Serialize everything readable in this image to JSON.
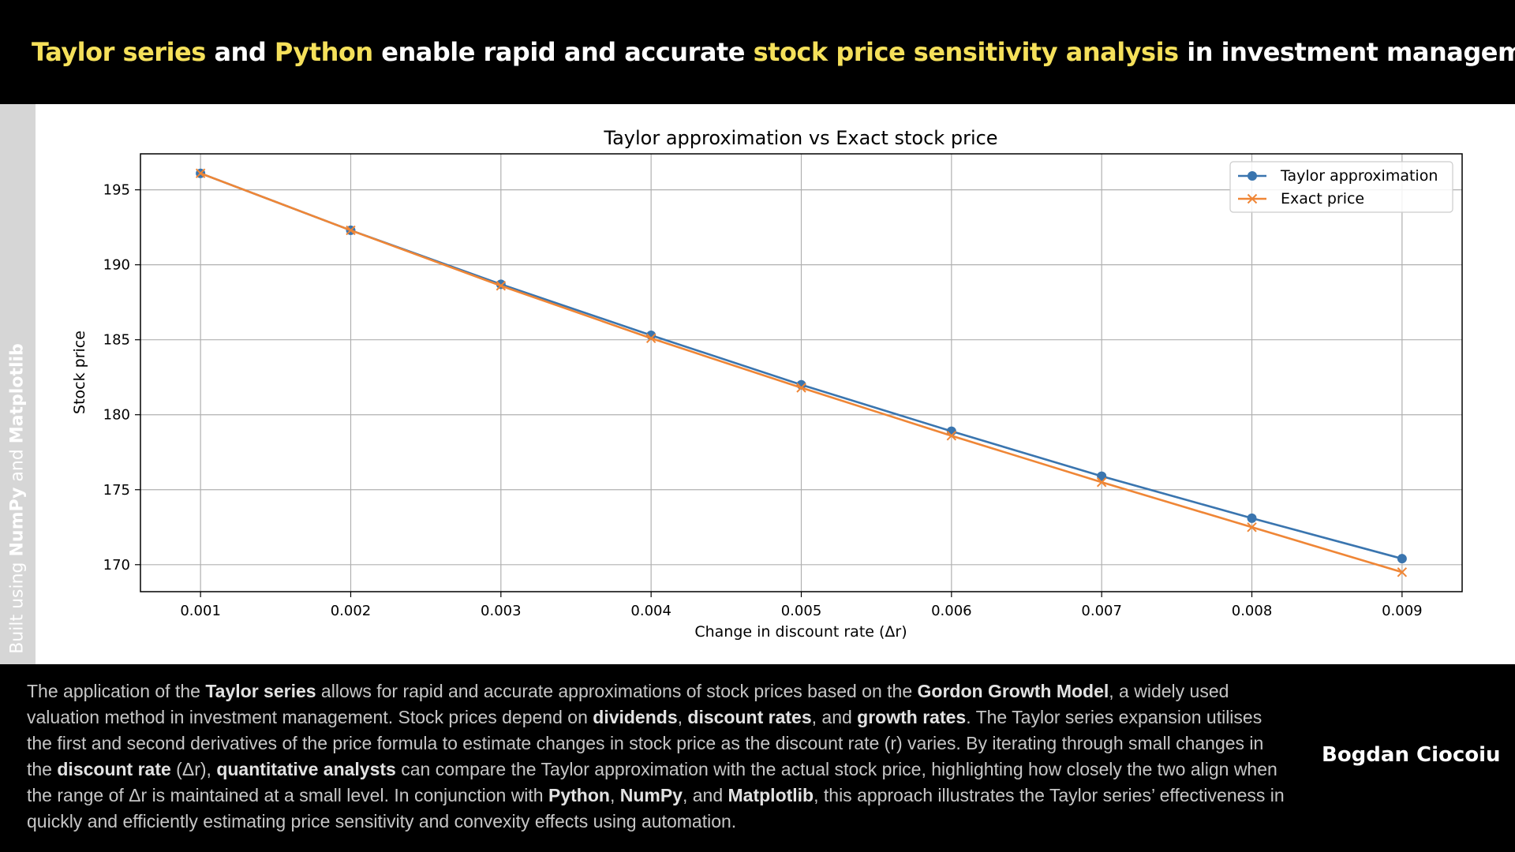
{
  "header": {
    "segments": [
      {
        "text": "Taylor series",
        "highlight": true
      },
      {
        "text": " and ",
        "highlight": false
      },
      {
        "text": "Python",
        "highlight": true
      },
      {
        "text": " enable rapid and accurate ",
        "highlight": false
      },
      {
        "text": "stock price sensitivity analysis",
        "highlight": true
      },
      {
        "text": " in investment management",
        "highlight": false
      }
    ],
    "highlight_color": "#f5e05a"
  },
  "side_label": {
    "segments": [
      {
        "text": "Built using ",
        "bold": false
      },
      {
        "text": "NumPy",
        "bold": true
      },
      {
        "text": " and ",
        "bold": false
      },
      {
        "text": "Matplotlib",
        "bold": true
      }
    ]
  },
  "chart_data": {
    "type": "line",
    "title": "Taylor approximation vs Exact stock price",
    "xlabel": "Change in discount rate (Δr)",
    "ylabel": "Stock price",
    "x": [
      0.001,
      0.002,
      0.003,
      0.004,
      0.005,
      0.006,
      0.007,
      0.008,
      0.009
    ],
    "x_tick_labels": [
      "0.001",
      "0.002",
      "0.003",
      "0.004",
      "0.005",
      "0.006",
      "0.007",
      "0.008",
      "0.009"
    ],
    "xlim": [
      0.0006,
      0.0094
    ],
    "ylim": [
      168.2,
      197.4
    ],
    "y_ticks": [
      170,
      175,
      180,
      185,
      190,
      195
    ],
    "grid": true,
    "legend_position": "top-right",
    "series": [
      {
        "name": "Taylor approximation",
        "color": "#3a75af",
        "marker": "circle",
        "values": [
          196.1,
          192.3,
          188.7,
          185.3,
          182.0,
          178.9,
          175.9,
          173.1,
          170.4
        ]
      },
      {
        "name": "Exact price",
        "color": "#ef8636",
        "marker": "x",
        "values": [
          196.1,
          192.3,
          188.6,
          185.1,
          181.8,
          178.6,
          175.5,
          172.5,
          169.5
        ]
      }
    ]
  },
  "description": {
    "segments": [
      {
        "text": "The application of the ",
        "bold": false
      },
      {
        "text": "Taylor series",
        "bold": true
      },
      {
        "text": " allows for rapid and accurate approximations of stock prices based on the ",
        "bold": false
      },
      {
        "text": "Gordon Growth Model",
        "bold": true
      },
      {
        "text": ", a widely used valuation method in investment management. Stock prices depend on ",
        "bold": false
      },
      {
        "text": "dividends",
        "bold": true
      },
      {
        "text": ", ",
        "bold": false
      },
      {
        "text": "discount rates",
        "bold": true
      },
      {
        "text": ", and ",
        "bold": false
      },
      {
        "text": "growth rates",
        "bold": true
      },
      {
        "text": ". The Taylor series expansion utilises the first and second derivatives of the price formula to estimate changes in stock price as the discount rate (r) varies. By iterating through small changes in the ",
        "bold": false
      },
      {
        "text": "discount rate",
        "bold": true
      },
      {
        "text": " (Δr), ",
        "bold": false
      },
      {
        "text": "quantitative analysts",
        "bold": true
      },
      {
        "text": " can compare the Taylor approximation with the actual stock price, highlighting how closely the two align when the range of Δr is maintained at a small level. In conjunction with ",
        "bold": false
      },
      {
        "text": "Python",
        "bold": true
      },
      {
        "text": ", ",
        "bold": false
      },
      {
        "text": "NumPy",
        "bold": true
      },
      {
        "text": ", and ",
        "bold": false
      },
      {
        "text": "Matplotlib",
        "bold": true
      },
      {
        "text": ", this approach illustrates the Taylor series’ effectiveness in quickly and efficiently estimating price sensitivity and convexity effects using automation.",
        "bold": false
      }
    ]
  },
  "author": "Bogdan Ciocoiu"
}
